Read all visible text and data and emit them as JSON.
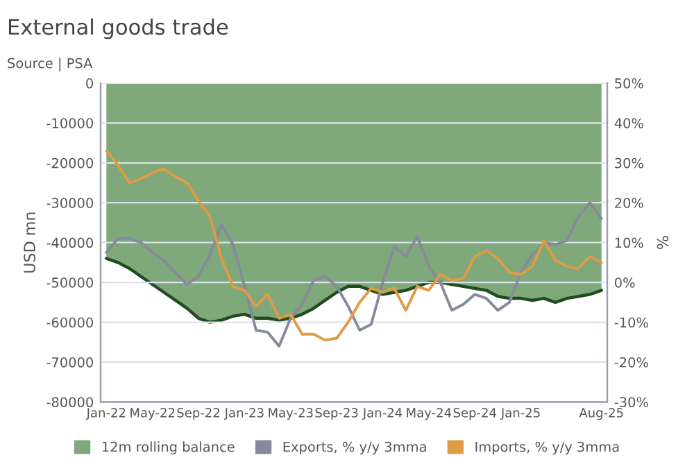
{
  "chart_data": {
    "type": "area",
    "title": "External goods trade",
    "subtitle": "Source | PSA",
    "ylabel": "USD mn",
    "y2label": "%",
    "categories": [
      "Jan-22",
      null,
      null,
      null,
      "May-22",
      null,
      null,
      null,
      "Sep-22",
      null,
      null,
      null,
      "Jan-23",
      null,
      null,
      null,
      "May-23",
      null,
      null,
      null,
      "Sep-23",
      null,
      null,
      null,
      "Jan-24",
      null,
      null,
      null,
      "May-24",
      null,
      null,
      null,
      "Sep-24",
      null,
      null,
      null,
      "Jan-25",
      null,
      null,
      null,
      null,
      null,
      null,
      "Aug-25"
    ],
    "series": [
      {
        "name": "12m rolling balance",
        "color": "#7fa87b",
        "values": [
          -44000,
          -45000,
          -46500,
          -48500,
          -50500,
          -52500,
          -54500,
          -56500,
          -59000,
          -60000,
          -59500,
          -58500,
          -58000,
          -59000,
          -59000,
          -59500,
          -59000,
          -58000,
          -56500,
          -54500,
          -52500,
          -51000,
          -51000,
          -52000,
          -53000,
          -52500,
          -52000,
          -51000,
          -50000,
          -50000,
          -50500,
          -51000,
          -51500,
          -52000,
          -53500,
          -54000,
          -54000,
          -54500,
          -54000,
          -55000,
          -54000,
          -53500,
          -53000,
          -52000
        ]
      },
      {
        "name": "Exports, % y/y 3mma",
        "type": "line",
        "axis": "y2",
        "color": "#868a9c",
        "values": [
          7.5,
          11,
          11,
          10,
          7.5,
          5.5,
          2.5,
          -0.5,
          1.5,
          7,
          14.5,
          9.5,
          -1,
          -12,
          -12.5,
          -16,
          -9,
          -5.5,
          0.5,
          1.5,
          -1,
          -6,
          -12,
          -10.5,
          0,
          9,
          6.5,
          11.5,
          4,
          0,
          -7,
          -5.5,
          -3,
          -4,
          -7,
          -5,
          2.5,
          7,
          10,
          9.5,
          10.5,
          16.5,
          20,
          16
        ]
      },
      {
        "name": "Imports, % y/y 3mma",
        "type": "line",
        "axis": "y2",
        "color": "#e09b45",
        "values": [
          33,
          29.5,
          25,
          26,
          27.5,
          28.5,
          26.5,
          25,
          20.5,
          16.5,
          6,
          -1,
          -2,
          -6,
          -3,
          -9,
          -8,
          -13,
          -13,
          -14.5,
          -14,
          -10,
          -5,
          -1.5,
          -2.5,
          -1.5,
          -7,
          -1,
          -2,
          2,
          0.5,
          1,
          6.5,
          8,
          6,
          2.5,
          2,
          4,
          10.5,
          5.5,
          4,
          3.5,
          6.5,
          5
        ]
      }
    ],
    "ylim": [
      -80000,
      0
    ],
    "yticks": [
      -80000,
      -70000,
      -60000,
      -50000,
      -40000,
      -30000,
      -20000,
      -10000,
      0
    ],
    "y2lim": [
      -30,
      50
    ],
    "y2ticks": [
      {
        "value": -30,
        "label": "-30%"
      },
      {
        "value": -20,
        "label": "-20%"
      },
      {
        "value": -10,
        "label": "-10%"
      },
      {
        "value": 0,
        "label": "0%"
      },
      {
        "value": 10,
        "label": "10%"
      },
      {
        "value": 20,
        "label": "20%"
      },
      {
        "value": 30,
        "label": "30%"
      },
      {
        "value": 40,
        "label": "40%"
      },
      {
        "value": 50,
        "label": "50%"
      }
    ],
    "grid": "y",
    "legend": "bottom"
  }
}
